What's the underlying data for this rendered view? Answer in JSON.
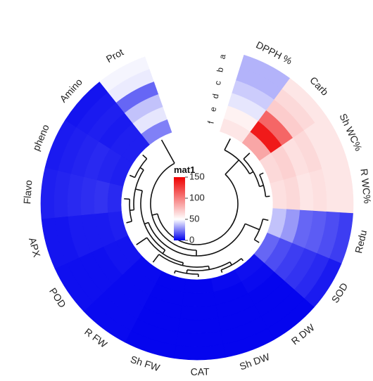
{
  "chart_data": {
    "type": "heatmap",
    "layout": "circular",
    "legend": {
      "title": "mat1",
      "ticks": [
        0,
        50,
        100,
        150
      ],
      "range": [
        0,
        150
      ],
      "colors": {
        "low": "#0000ee",
        "mid": "#ffffff",
        "high": "#ee0000"
      }
    },
    "tracks": [
      "a",
      "b",
      "c",
      "d",
      "e",
      "f"
    ],
    "variables": [
      {
        "name": "DPPH %",
        "values": [
          35,
          35,
          40,
          45,
          55,
          60
        ]
      },
      {
        "name": "Carb",
        "values": [
          60,
          65,
          70,
          110,
          140,
          85
        ]
      },
      {
        "name": "Sh WC%",
        "values": [
          60,
          60,
          65,
          62,
          68,
          65
        ]
      },
      {
        "name": "R WC%",
        "values": [
          60,
          60,
          62,
          60,
          65,
          62
        ]
      },
      {
        "name": "Redu",
        "values": [
          12,
          15,
          18,
          20,
          30,
          38
        ]
      },
      {
        "name": "SOD",
        "values": [
          5,
          8,
          10,
          12,
          15,
          20
        ]
      },
      {
        "name": "R DW",
        "values": [
          1,
          1,
          1,
          1,
          2,
          3
        ]
      },
      {
        "name": "Sh DW",
        "values": [
          1,
          1,
          1,
          1,
          1,
          2
        ]
      },
      {
        "name": "CAT",
        "values": [
          1,
          1,
          1,
          1,
          1,
          1
        ]
      },
      {
        "name": "Sh FW",
        "values": [
          1,
          1,
          1,
          1,
          1,
          1
        ]
      },
      {
        "name": "R FW",
        "values": [
          2,
          2,
          2,
          2,
          2,
          2
        ]
      },
      {
        "name": "POD",
        "values": [
          3,
          3,
          3,
          3,
          4,
          4
        ]
      },
      {
        "name": "APX",
        "values": [
          4,
          4,
          5,
          5,
          5,
          6
        ]
      },
      {
        "name": "Flavo",
        "values": [
          6,
          7,
          8,
          9,
          10,
          8
        ]
      },
      {
        "name": "pheno",
        "values": [
          5,
          6,
          7,
          8,
          7,
          6
        ]
      },
      {
        "name": "Amino",
        "values": [
          4,
          5,
          6,
          5,
          6,
          6
        ]
      },
      {
        "name": "Prot",
        "values": [
          48,
          46,
          20,
          38,
          45,
          25
        ]
      }
    ]
  }
}
